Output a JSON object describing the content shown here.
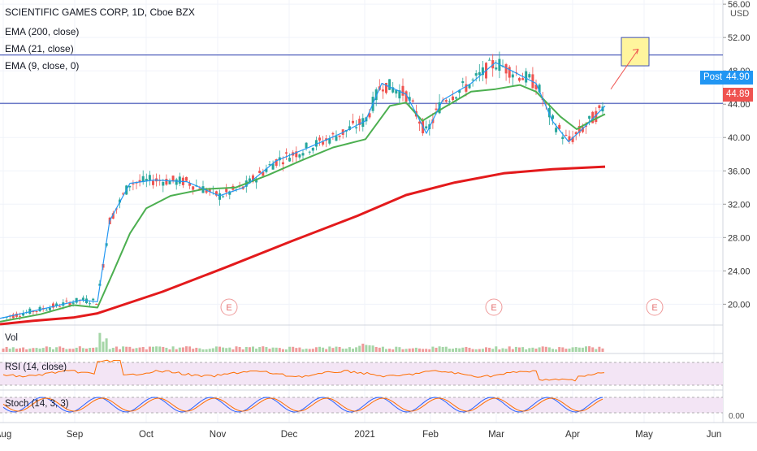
{
  "header": {
    "title": "SCIENTIFIC GAMES CORP, 1D, Cboe BZX",
    "indicators": [
      "EMA (200, close)",
      "EMA (21, close)",
      "EMA (9, close, 0)"
    ]
  },
  "currency": "USD",
  "price_tags": {
    "post_label": "Post",
    "post_value": "44.90",
    "last_value": "44.89",
    "post_color": "#2196f3",
    "last_color": "#ef5350"
  },
  "panes": {
    "volume_label": "Vol",
    "rsi_label": "RSI (14, close)",
    "stoch_label": "Stoch (14, 3, 3)",
    "stoch_axis_tick": "0.00"
  },
  "earnings_marker": "E",
  "colors": {
    "up": "#26a69a",
    "down": "#ef5350",
    "ema200": "#e31a1c",
    "ema21": "#4caf50",
    "ema9": "#2196f3",
    "rsi": "#ff6d00",
    "stoch_k": "#2962ff",
    "stoch_d": "#ff6d00",
    "hline": "#3f51b5",
    "pane_bg": "#f3e5f5",
    "grid": "#f0f3fa"
  },
  "chart_data": {
    "type": "candlestick",
    "title": "SCIENTIFIC GAMES CORP, 1D, Cboe BZX",
    "x_labels": [
      "Aug",
      "Sep",
      "Oct",
      "Nov",
      "Dec",
      "2021",
      "Feb",
      "Mar",
      "Apr",
      "May",
      "Jun"
    ],
    "y_ticks": [
      20,
      24,
      28,
      32,
      36,
      40,
      44,
      48,
      52,
      56
    ],
    "ylim": [
      17.5,
      56.5
    ],
    "series": [
      {
        "name": "EMA (200, close)",
        "points": [
          [
            0,
            17.6
          ],
          [
            40,
            18.0
          ],
          [
            90,
            18.4
          ],
          [
            120,
            18.9
          ],
          [
            200,
            21.5
          ],
          [
            280,
            24.5
          ],
          [
            360,
            27.6
          ],
          [
            440,
            30.6
          ],
          [
            500,
            33.1
          ],
          [
            560,
            34.6
          ],
          [
            620,
            35.7
          ],
          [
            680,
            36.2
          ],
          [
            745,
            36.5
          ]
        ]
      },
      {
        "name": "EMA (21, close)",
        "points": [
          [
            0,
            17.9
          ],
          [
            50,
            18.8
          ],
          [
            90,
            19.9
          ],
          [
            120,
            19.6
          ],
          [
            140,
            24.0
          ],
          [
            160,
            28.5
          ],
          [
            180,
            31.5
          ],
          [
            210,
            33.0
          ],
          [
            250,
            33.8
          ],
          [
            290,
            34.0
          ],
          [
            330,
            35.5
          ],
          [
            370,
            37.2
          ],
          [
            410,
            38.8
          ],
          [
            450,
            39.8
          ],
          [
            480,
            43.8
          ],
          [
            500,
            44.2
          ],
          [
            520,
            42.0
          ],
          [
            545,
            43.5
          ],
          [
            580,
            45.5
          ],
          [
            610,
            45.8
          ],
          [
            640,
            46.3
          ],
          [
            660,
            45.5
          ],
          [
            690,
            42.5
          ],
          [
            710,
            41.0
          ],
          [
            730,
            42.1
          ],
          [
            745,
            42.8
          ]
        ]
      },
      {
        "name": "EMA (9, close, 0)",
        "points": [
          [
            0,
            18.3
          ],
          [
            60,
            19.6
          ],
          [
            100,
            20.5
          ],
          [
            120,
            20.3
          ],
          [
            135,
            30.0
          ],
          [
            160,
            34.5
          ],
          [
            190,
            34.9
          ],
          [
            230,
            34.7
          ],
          [
            270,
            33.0
          ],
          [
            300,
            34.0
          ],
          [
            340,
            37.2
          ],
          [
            380,
            38.8
          ],
          [
            420,
            40.5
          ],
          [
            450,
            42.0
          ],
          [
            470,
            46.5
          ],
          [
            500,
            45.2
          ],
          [
            525,
            40.5
          ],
          [
            545,
            44.5
          ],
          [
            580,
            46.5
          ],
          [
            610,
            49.0
          ],
          [
            640,
            47.5
          ],
          [
            660,
            46.5
          ],
          [
            680,
            42.0
          ],
          [
            700,
            39.5
          ],
          [
            720,
            41.3
          ],
          [
            745,
            43.8
          ]
        ]
      }
    ],
    "horizontal_lines": [
      49.9,
      44.1
    ],
    "last_price": 44.89
  }
}
